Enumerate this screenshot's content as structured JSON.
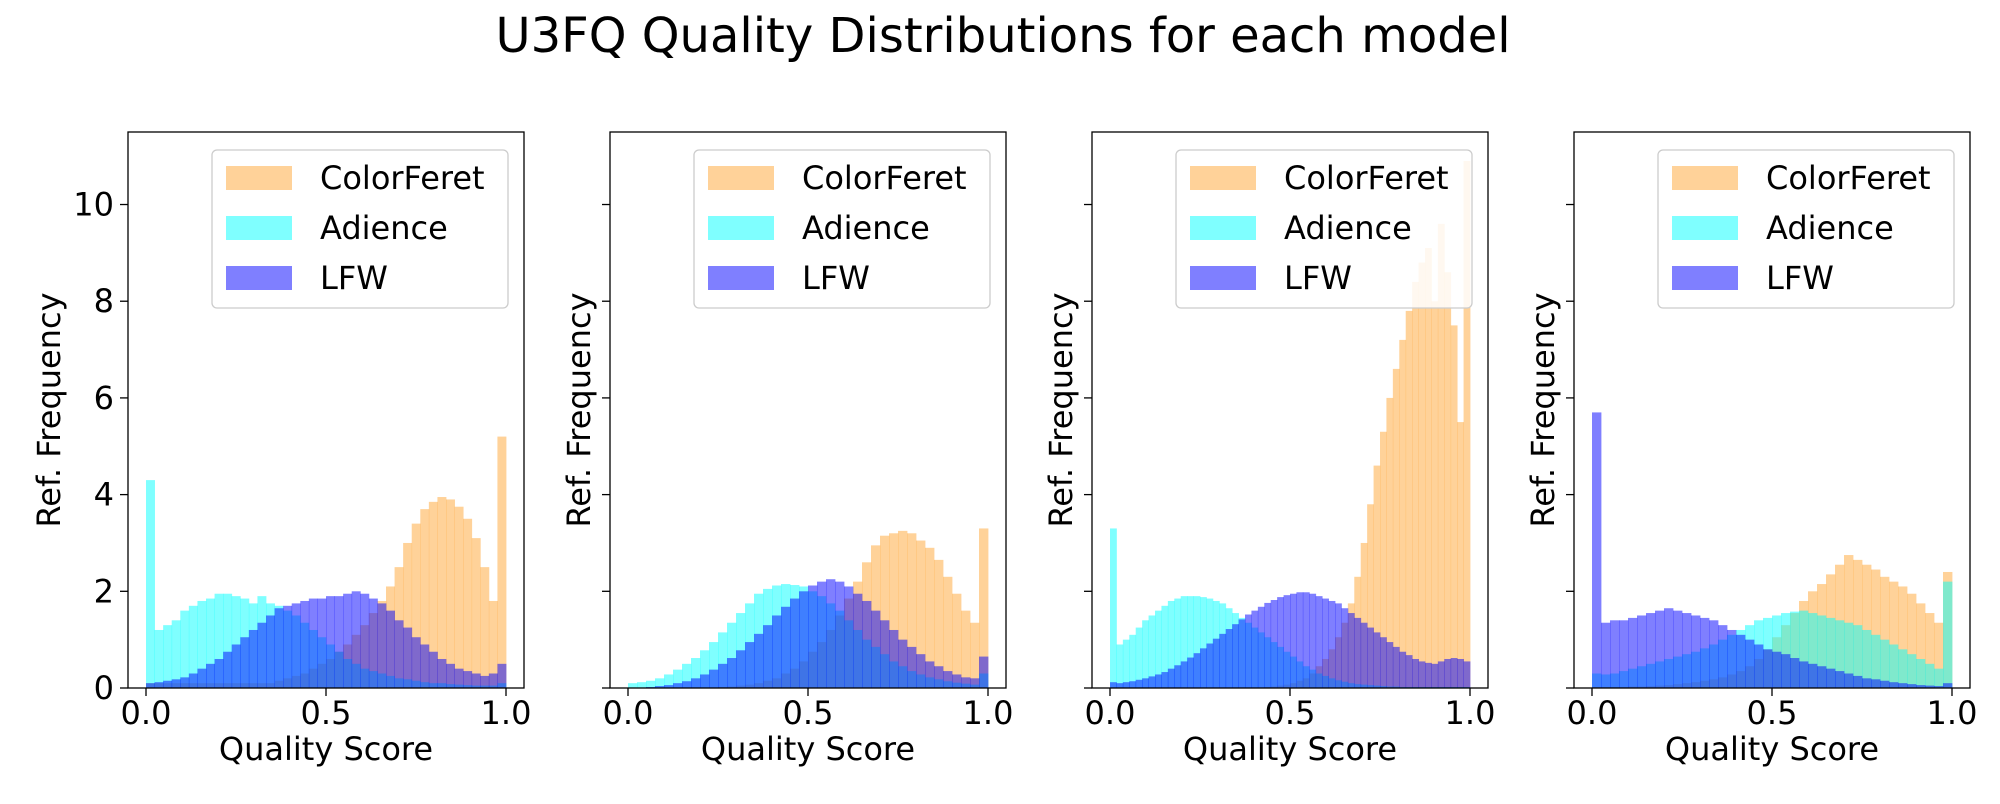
{
  "figure": {
    "title": "U3FQ Quality Distributions for each model"
  },
  "colors": {
    "ColorFeret": "#ffa533",
    "Adience": "#00ffff",
    "LFW": "#0000ff",
    "alpha": 0.5
  },
  "chart_data": [
    {
      "type": "bar",
      "xlabel": "Quality Score",
      "ylabel": "Ref. Frequency",
      "xlim": [
        -0.05,
        1.05
      ],
      "ylim": [
        0,
        11.5
      ],
      "xticks": [
        "0.0",
        "0.5",
        "1.0"
      ],
      "yticks": [
        "0",
        "2",
        "4",
        "6",
        "8",
        "10"
      ],
      "legend": "top-right",
      "series": [
        {
          "name": "ColorFeret",
          "values": [
            0.1,
            0.1,
            0.1,
            0.1,
            0.1,
            0.1,
            0.1,
            0.1,
            0.1,
            0.1,
            0.1,
            0.1,
            0.1,
            0.1,
            0.1,
            0.15,
            0.2,
            0.25,
            0.3,
            0.4,
            0.5,
            0.6,
            0.75,
            0.9,
            1.1,
            1.3,
            1.55,
            1.8,
            2.1,
            2.5,
            3.0,
            3.4,
            3.7,
            3.85,
            3.95,
            3.9,
            3.75,
            3.5,
            3.1,
            2.5,
            1.8,
            5.2
          ]
        },
        {
          "name": "Adience",
          "values": [
            4.3,
            1.2,
            1.3,
            1.4,
            1.6,
            1.7,
            1.8,
            1.85,
            1.95,
            1.95,
            1.9,
            1.85,
            1.75,
            1.9,
            1.75,
            1.7,
            1.6,
            1.5,
            1.35,
            1.2,
            1.05,
            0.9,
            0.75,
            0.6,
            0.5,
            0.4,
            0.35,
            0.3,
            0.25,
            0.2,
            0.18,
            0.15,
            0.12,
            0.1,
            0.1,
            0.08,
            0.07,
            0.06,
            0.05,
            0.05,
            0.05,
            0.1
          ]
        },
        {
          "name": "LFW",
          "values": [
            0.1,
            0.12,
            0.15,
            0.18,
            0.22,
            0.3,
            0.4,
            0.5,
            0.6,
            0.75,
            0.9,
            1.05,
            1.2,
            1.35,
            1.5,
            1.65,
            1.7,
            1.75,
            1.8,
            1.85,
            1.85,
            1.9,
            1.9,
            1.95,
            2.0,
            1.95,
            1.85,
            1.75,
            1.6,
            1.4,
            1.25,
            1.05,
            0.9,
            0.75,
            0.6,
            0.5,
            0.4,
            0.35,
            0.3,
            0.25,
            0.3,
            0.5
          ]
        }
      ]
    },
    {
      "type": "bar",
      "xlabel": "Quality Score",
      "ylabel": "Ref. Frequency",
      "xlim": [
        -0.05,
        1.05
      ],
      "ylim": [
        0,
        11.5
      ],
      "xticks": [
        "0.0",
        "0.5",
        "1.0"
      ],
      "yticks": [],
      "legend": "top-right",
      "series": [
        {
          "name": "ColorFeret",
          "values": [
            0,
            0,
            0,
            0,
            0,
            0,
            0,
            0,
            0,
            0,
            0.02,
            0.03,
            0.05,
            0.07,
            0.1,
            0.15,
            0.2,
            0.3,
            0.4,
            0.55,
            0.75,
            0.95,
            1.2,
            1.5,
            1.85,
            2.2,
            2.6,
            2.95,
            3.15,
            3.2,
            3.25,
            3.2,
            3.05,
            2.9,
            2.65,
            2.3,
            1.95,
            1.6,
            1.35,
            3.3
          ]
        },
        {
          "name": "Adience",
          "values": [
            0.1,
            0.12,
            0.15,
            0.2,
            0.28,
            0.38,
            0.5,
            0.62,
            0.78,
            0.95,
            1.15,
            1.35,
            1.55,
            1.75,
            1.95,
            2.05,
            2.12,
            2.15,
            2.13,
            2.1,
            2.0,
            1.9,
            1.75,
            1.6,
            1.4,
            1.2,
            1.0,
            0.85,
            0.7,
            0.55,
            0.45,
            0.35,
            0.28,
            0.22,
            0.18,
            0.14,
            0.11,
            0.09,
            0.07,
            0.3
          ]
        },
        {
          "name": "LFW",
          "values": [
            0,
            0.01,
            0.02,
            0.04,
            0.06,
            0.1,
            0.14,
            0.2,
            0.28,
            0.38,
            0.5,
            0.62,
            0.78,
            0.95,
            1.12,
            1.3,
            1.5,
            1.68,
            1.85,
            2.0,
            2.12,
            2.2,
            2.25,
            2.2,
            2.1,
            1.95,
            1.8,
            1.6,
            1.4,
            1.2,
            1.0,
            0.85,
            0.7,
            0.55,
            0.45,
            0.35,
            0.28,
            0.22,
            0.2,
            0.65
          ]
        }
      ]
    },
    {
      "type": "bar",
      "xlabel": "Quality Score",
      "ylabel": "Ref. Frequency",
      "xlim": [
        -0.05,
        1.05
      ],
      "ylim": [
        0,
        11.5
      ],
      "xticks": [
        "0.0",
        "0.5",
        "1.0"
      ],
      "yticks": [],
      "legend": "top-right",
      "series": [
        {
          "name": "ColorFeret",
          "values": [
            0,
            0,
            0,
            0,
            0,
            0,
            0,
            0,
            0,
            0,
            0,
            0,
            0,
            0,
            0,
            0,
            0,
            0,
            0,
            0,
            0,
            0,
            0,
            0,
            0.02,
            0.03,
            0.05,
            0.07,
            0.1,
            0.15,
            0.2,
            0.3,
            0.45,
            0.6,
            0.8,
            1.05,
            1.35,
            1.75,
            2.3,
            3.0,
            3.8,
            4.6,
            5.3,
            6.0,
            6.6,
            7.2,
            7.8,
            8.4,
            8.8,
            9.1,
            8.0,
            9.6,
            8.6,
            7.5,
            5.5,
            10.9
          ]
        },
        {
          "name": "Adience",
          "values": [
            3.3,
            0.9,
            1.0,
            1.1,
            1.25,
            1.4,
            1.5,
            1.6,
            1.7,
            1.8,
            1.85,
            1.9,
            1.9,
            1.9,
            1.88,
            1.85,
            1.8,
            1.75,
            1.65,
            1.55,
            1.45,
            1.35,
            1.25,
            1.15,
            1.05,
            0.95,
            0.85,
            0.75,
            0.65,
            0.55,
            0.45,
            0.38,
            0.3,
            0.25,
            0.2,
            0.16,
            0.13,
            0.1,
            0.08,
            0.07,
            0.06,
            0.05,
            0.04,
            0.03,
            0.03,
            0.02,
            0.02,
            0.02,
            0.02,
            0.02,
            0.02,
            0.02,
            0.02,
            0.02,
            0.02,
            0.02
          ]
        },
        {
          "name": "LFW",
          "values": [
            0.12,
            0.1,
            0.12,
            0.14,
            0.17,
            0.2,
            0.24,
            0.28,
            0.33,
            0.4,
            0.47,
            0.55,
            0.63,
            0.72,
            0.82,
            0.92,
            1.02,
            1.12,
            1.22,
            1.32,
            1.42,
            1.52,
            1.6,
            1.68,
            1.76,
            1.82,
            1.88,
            1.92,
            1.95,
            1.98,
            1.98,
            1.95,
            1.9,
            1.85,
            1.8,
            1.75,
            1.65,
            1.55,
            1.45,
            1.35,
            1.25,
            1.15,
            1.05,
            0.95,
            0.85,
            0.75,
            0.68,
            0.6,
            0.55,
            0.52,
            0.5,
            0.55,
            0.6,
            0.62,
            0.6,
            0.55
          ]
        }
      ]
    },
    {
      "type": "bar",
      "xlabel": "Quality Score",
      "ylabel": "Ref. Frequency",
      "xlim": [
        -0.05,
        1.05
      ],
      "ylim": [
        0,
        11.5
      ],
      "xticks": [
        "0.0",
        "0.5",
        "1.0"
      ],
      "yticks": [],
      "legend": "top-right",
      "series": [
        {
          "name": "ColorFeret",
          "values": [
            0.02,
            0.02,
            0.02,
            0.02,
            0.03,
            0.03,
            0.04,
            0.05,
            0.06,
            0.08,
            0.1,
            0.12,
            0.15,
            0.18,
            0.22,
            0.28,
            0.35,
            0.45,
            0.6,
            0.8,
            1.05,
            1.3,
            1.55,
            1.8,
            2.0,
            2.15,
            2.35,
            2.55,
            2.75,
            2.65,
            2.55,
            2.45,
            2.3,
            2.2,
            2.1,
            1.95,
            1.75,
            1.55,
            1.35,
            2.4
          ]
        },
        {
          "name": "Adience",
          "values": [
            0.3,
            0.28,
            0.3,
            0.35,
            0.4,
            0.45,
            0.5,
            0.55,
            0.6,
            0.65,
            0.7,
            0.75,
            0.82,
            0.9,
            1.0,
            1.1,
            1.2,
            1.3,
            1.4,
            1.45,
            1.5,
            1.55,
            1.58,
            1.6,
            1.55,
            1.5,
            1.45,
            1.4,
            1.35,
            1.3,
            1.2,
            1.1,
            1.0,
            0.9,
            0.8,
            0.7,
            0.6,
            0.5,
            0.4,
            2.2
          ]
        },
        {
          "name": "LFW",
          "values": [
            5.7,
            1.35,
            1.4,
            1.4,
            1.45,
            1.5,
            1.55,
            1.6,
            1.65,
            1.6,
            1.55,
            1.5,
            1.45,
            1.4,
            1.3,
            1.2,
            1.1,
            1.0,
            0.9,
            0.8,
            0.75,
            0.7,
            0.62,
            0.55,
            0.5,
            0.45,
            0.4,
            0.35,
            0.3,
            0.25,
            0.2,
            0.18,
            0.15,
            0.12,
            0.1,
            0.08,
            0.06,
            0.05,
            0.04,
            0.1
          ]
        }
      ]
    }
  ]
}
